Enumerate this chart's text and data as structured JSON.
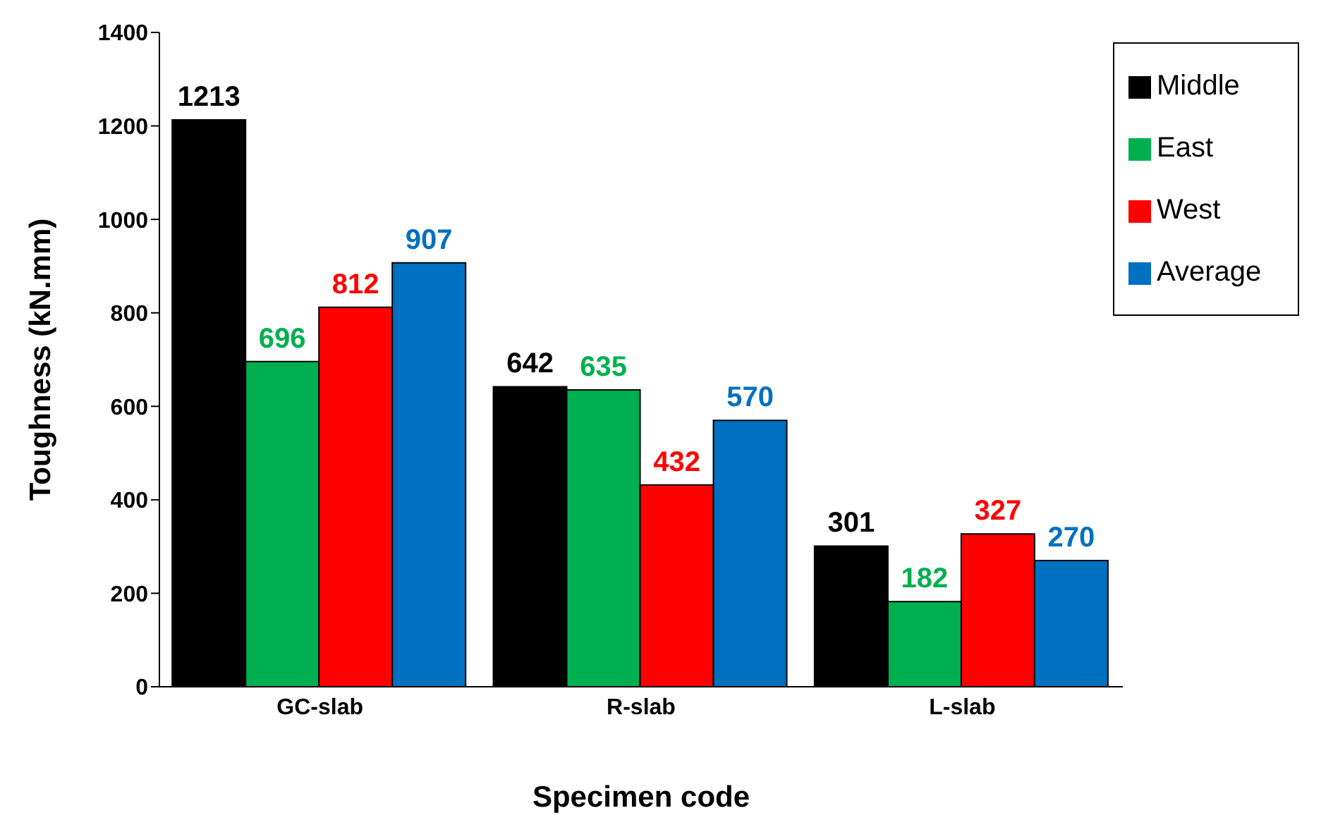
{
  "chart_data": {
    "type": "bar",
    "xlabel": "Specimen code",
    "ylabel": "Toughness (kN.mm)",
    "categories": [
      "GC-slab",
      "R-slab",
      "L-slab"
    ],
    "series": [
      {
        "name": "Middle",
        "color": "#000000",
        "values": [
          1213,
          642,
          301
        ]
      },
      {
        "name": "East",
        "color": "#00b050",
        "values": [
          696,
          635,
          182
        ]
      },
      {
        "name": "West",
        "color": "#ff0000",
        "values": [
          812,
          432,
          327
        ]
      },
      {
        "name": "Average",
        "color": "#0070c0",
        "values": [
          907,
          570,
          270
        ]
      }
    ],
    "ylim": [
      0,
      1400
    ],
    "yticks": [
      0,
      200,
      400,
      600,
      800,
      1000,
      1200,
      1400
    ],
    "data_labels": true,
    "grid": false,
    "legend": "top right"
  }
}
